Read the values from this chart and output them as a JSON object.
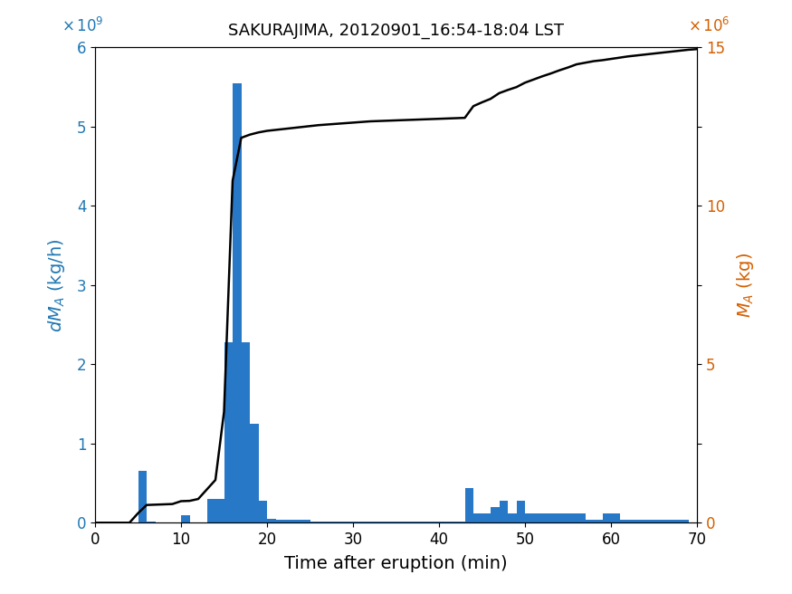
{
  "title": "SAKURAJIMA, 20120901_16:54-18:04 LST",
  "xlabel": "Time after eruption (min)",
  "bar_color": "#2878c8",
  "line_color": "#000000",
  "xlim": [
    0,
    70
  ],
  "ylim_left": [
    0,
    6000000000.0
  ],
  "ylim_right": [
    0,
    15000000.0
  ],
  "bar_centers": [
    5.5,
    6.5,
    7.5,
    8.5,
    9.5,
    10.5,
    11.5,
    12.5,
    13.5,
    14.5,
    15.5,
    16.5,
    17.5,
    18.5,
    19.5,
    20.5,
    21.5,
    22.5,
    23.5,
    24.5,
    25.5,
    26.5,
    27.5,
    28.5,
    29.5,
    30.5,
    31.5,
    32.5,
    33.5,
    34.5,
    35.5,
    36.5,
    37.5,
    38.5,
    39.5,
    40.5,
    41.5,
    42.5,
    43.5,
    44.5,
    45.5,
    46.5,
    47.5,
    48.5,
    49.5,
    50.5,
    51.5,
    52.5,
    53.5,
    54.5,
    55.5,
    56.5,
    57.5,
    58.5,
    59.5,
    60.5,
    61.5,
    62.5,
    63.5,
    64.5,
    65.5,
    66.5,
    67.5,
    68.5
  ],
  "bar_heights": [
    650000000.0,
    20000000.0,
    5000000.0,
    5000000.0,
    5000000.0,
    100000000.0,
    5000000.0,
    5000000.0,
    300000000.0,
    300000000.0,
    2280000000.0,
    5550000000.0,
    2280000000.0,
    1250000000.0,
    280000000.0,
    50000000.0,
    40000000.0,
    40000000.0,
    40000000.0,
    40000000.0,
    20000000.0,
    20000000.0,
    20000000.0,
    20000000.0,
    20000000.0,
    20000000.0,
    20000000.0,
    20000000.0,
    20000000.0,
    20000000.0,
    10000000.0,
    10000000.0,
    10000000.0,
    10000000.0,
    10000000.0,
    10000000.0,
    10000000.0,
    10000000.0,
    440000000.0,
    120000000.0,
    120000000.0,
    200000000.0,
    280000000.0,
    120000000.0,
    280000000.0,
    120000000.0,
    120000000.0,
    120000000.0,
    120000000.0,
    120000000.0,
    120000000.0,
    120000000.0,
    40000000.0,
    40000000.0,
    120000000.0,
    120000000.0,
    40000000.0,
    40000000.0,
    40000000.0,
    40000000.0,
    40000000.0,
    40000000.0,
    40000000.0,
    40000000.0
  ],
  "cum_x": [
    0,
    1,
    2,
    3,
    4,
    5,
    6,
    7,
    8,
    9,
    10,
    11,
    12,
    13,
    14,
    15,
    16,
    17,
    18,
    19,
    20,
    21,
    22,
    23,
    24,
    25,
    26,
    27,
    28,
    29,
    30,
    31,
    32,
    33,
    34,
    35,
    36,
    37,
    38,
    39,
    40,
    41,
    42,
    43,
    44,
    45,
    46,
    47,
    48,
    49,
    50,
    51,
    52,
    53,
    54,
    55,
    56,
    57,
    58,
    59,
    60,
    61,
    62,
    63,
    64,
    65,
    66,
    67,
    68,
    69,
    70
  ],
  "cum_y": [
    0.0,
    0.0,
    0.0,
    0.0,
    0.0,
    300000.0,
    560000.0,
    570000.0,
    580000.0,
    590000.0,
    680000.0,
    690000.0,
    750000.0,
    1050000.0,
    1350000.0,
    3500000.0,
    10800000.0,
    12150000.0,
    12250000.0,
    12320000.0,
    12370000.0,
    12400000.0,
    12430000.0,
    12460000.0,
    12490000.0,
    12520000.0,
    12550000.0,
    12570000.0,
    12590000.0,
    12610000.0,
    12630000.0,
    12650000.0,
    12670000.0,
    12680000.0,
    12690000.0,
    12700000.0,
    12710000.0,
    12720000.0,
    12730000.0,
    12740000.0,
    12750000.0,
    12760000.0,
    12770000.0,
    12780000.0,
    13150000.0,
    13270000.0,
    13380000.0,
    13560000.0,
    13660000.0,
    13750000.0,
    13890000.0,
    13990000.0,
    14090000.0,
    14180000.0,
    14280000.0,
    14370000.0,
    14470000.0,
    14520000.0,
    14570000.0,
    14600000.0,
    14640000.0,
    14680000.0,
    14720000.0,
    14750000.0,
    14780000.0,
    14810000.0,
    14840000.0,
    14870000.0,
    14900000.0,
    14930000.0,
    14950000.0
  ]
}
